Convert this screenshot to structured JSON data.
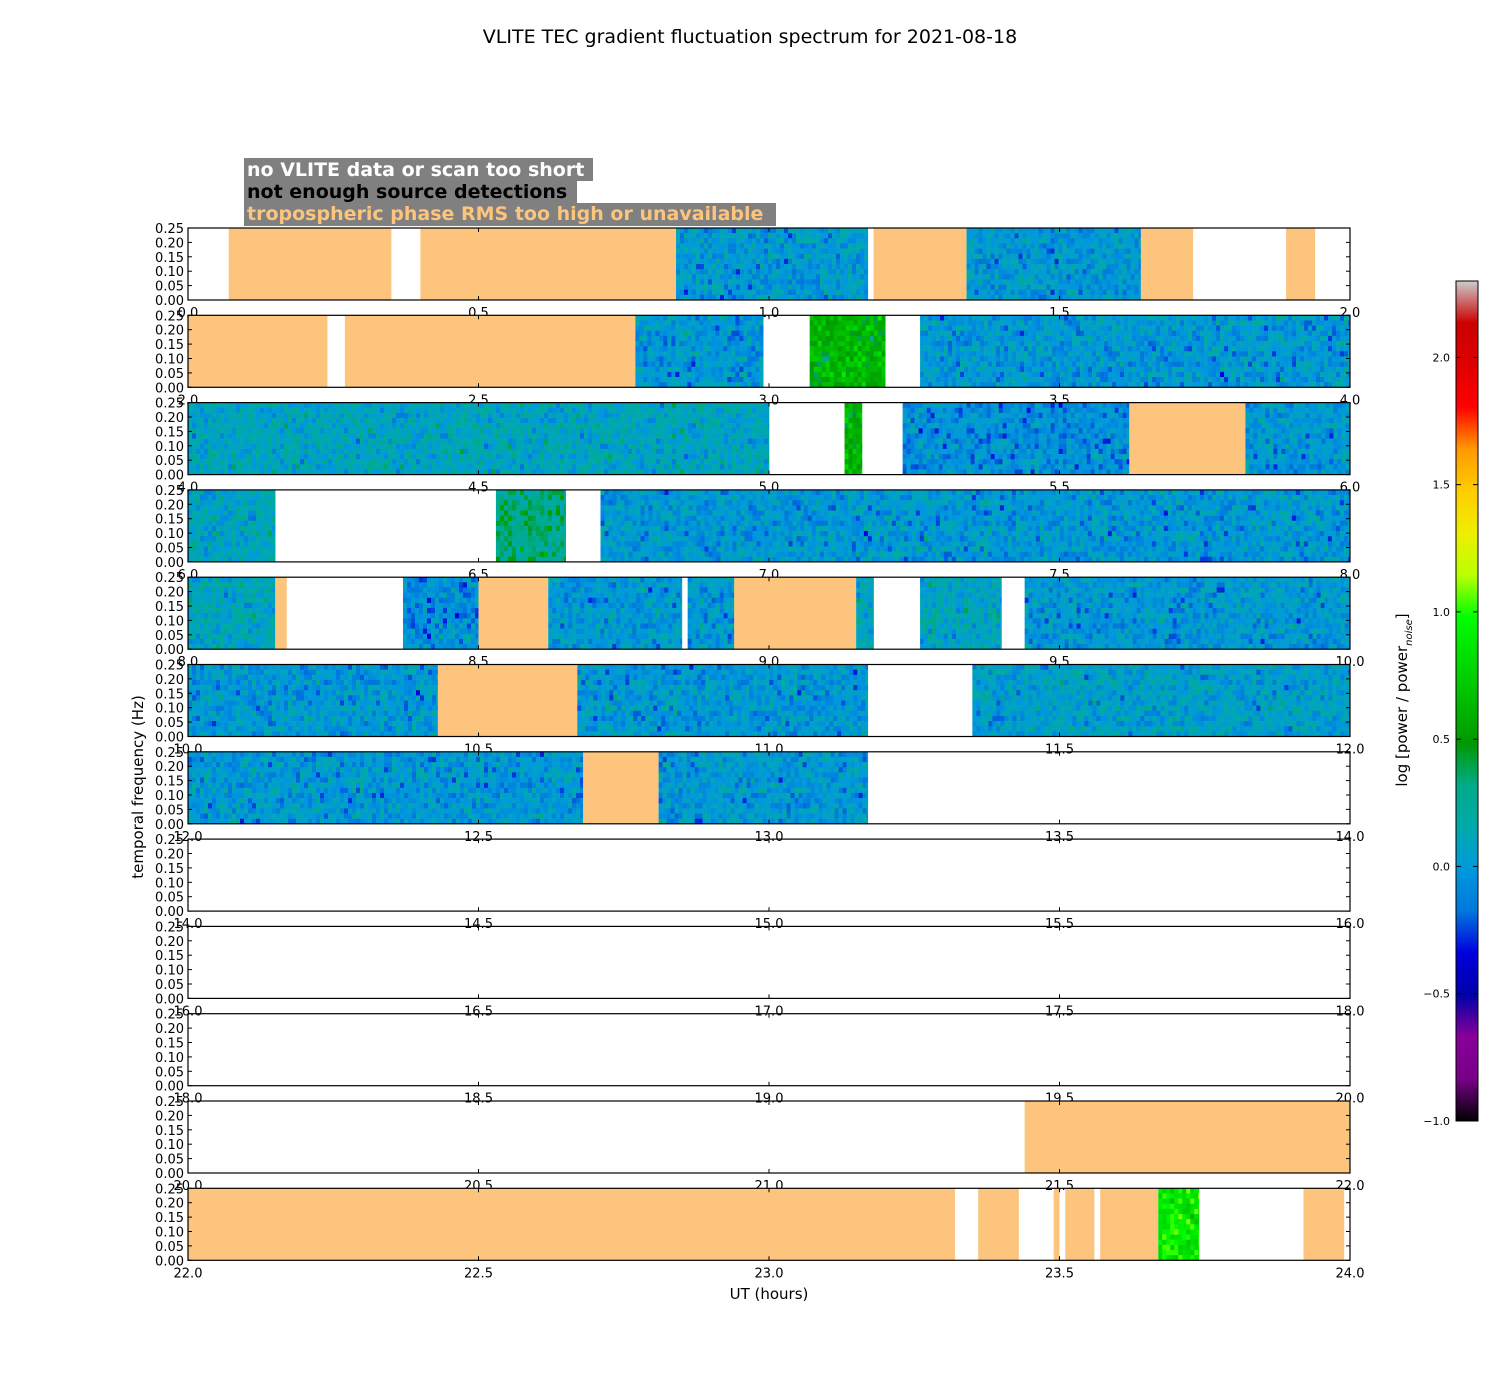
{
  "chart_data": {
    "type": "heatmap",
    "title": "VLITE TEC gradient fluctuation spectrum for 2021-08-18",
    "xlabel": "UT (hours)",
    "ylabel": "temporal frequency (Hz)",
    "ylim": [
      0,
      0.25
    ],
    "yticks": [
      "0.00",
      "0.05",
      "0.10",
      "0.15",
      "0.20",
      "0.25"
    ],
    "legend": [
      {
        "label": "no VLITE data or scan too short",
        "text_color": "#ffffff"
      },
      {
        "label": "not enough source detections",
        "text_color": "#000000"
      },
      {
        "label": "tropospheric phase RMS too high or unavailable",
        "text_color": "#fcc47c"
      }
    ],
    "legend_box_color": "#808080",
    "trop_color": "#fcc47c",
    "colorbar": {
      "label": "log [power / power",
      "label_sub": "noise",
      "label_end": "]",
      "range": [
        -1.0,
        2.3
      ],
      "ticks": [
        "-1.0",
        "-0.5",
        "0.0",
        "0.5",
        "1.0",
        "1.5",
        "2.0"
      ],
      "tick_values": [
        -1.0,
        -0.5,
        0.0,
        0.5,
        1.0,
        1.5,
        2.0
      ],
      "colormap": "nipy_spectral"
    },
    "panels": [
      {
        "xlim": [
          0,
          2
        ],
        "xticks": [
          "0.0",
          "0.5",
          "1.0",
          "1.5",
          "2.0"
        ],
        "segments": [
          {
            "start": 0.07,
            "end": 0.35,
            "state": "trop"
          },
          {
            "start": 0.4,
            "end": 0.84,
            "state": "trop"
          },
          {
            "start": 0.84,
            "end": 1.17,
            "state": "data",
            "level": 0.0
          },
          {
            "start": 1.18,
            "end": 1.34,
            "state": "trop"
          },
          {
            "start": 1.34,
            "end": 1.64,
            "state": "data",
            "level": 0.0
          },
          {
            "start": 1.64,
            "end": 1.73,
            "state": "trop"
          },
          {
            "start": 1.89,
            "end": 1.94,
            "state": "trop"
          }
        ]
      },
      {
        "xlim": [
          2,
          4
        ],
        "xticks": [
          "2.0",
          "2.5",
          "3.0",
          "3.5",
          "4.0"
        ],
        "segments": [
          {
            "start": 2.0,
            "end": 2.24,
            "state": "trop"
          },
          {
            "start": 2.27,
            "end": 2.77,
            "state": "trop"
          },
          {
            "start": 2.77,
            "end": 2.99,
            "state": "data",
            "level": 0.0
          },
          {
            "start": 3.07,
            "end": 3.2,
            "state": "data",
            "level": 0.6
          },
          {
            "start": 3.26,
            "end": 4.0,
            "state": "data",
            "level": 0.0
          }
        ]
      },
      {
        "xlim": [
          4,
          6
        ],
        "xticks": [
          "4.0",
          "4.5",
          "5.0",
          "5.5",
          "6.0"
        ],
        "segments": [
          {
            "start": 4.0,
            "end": 5.0,
            "state": "data",
            "level": 0.1
          },
          {
            "start": 5.13,
            "end": 5.16,
            "state": "data",
            "level": 0.6
          },
          {
            "start": 5.23,
            "end": 5.62,
            "state": "data",
            "level": -0.05
          },
          {
            "start": 5.62,
            "end": 5.82,
            "state": "trop"
          },
          {
            "start": 5.82,
            "end": 6.0,
            "state": "data",
            "level": 0.0
          }
        ]
      },
      {
        "xlim": [
          6,
          8
        ],
        "xticks": [
          "6.0",
          "6.5",
          "7.0",
          "7.5",
          "8.0"
        ],
        "segments": [
          {
            "start": 6.0,
            "end": 6.15,
            "state": "data",
            "level": 0.1
          },
          {
            "start": 6.53,
            "end": 6.65,
            "state": "data",
            "level": 0.3
          },
          {
            "start": 6.71,
            "end": 7.06,
            "state": "data",
            "level": 0.0
          },
          {
            "start": 7.06,
            "end": 8.0,
            "state": "data",
            "level": 0.0
          }
        ]
      },
      {
        "xlim": [
          8,
          10
        ],
        "xticks": [
          "8.0",
          "8.5",
          "9.0",
          "9.5",
          "10.0"
        ],
        "segments": [
          {
            "start": 8.0,
            "end": 8.15,
            "state": "data",
            "level": 0.1
          },
          {
            "start": 8.15,
            "end": 8.17,
            "state": "trop"
          },
          {
            "start": 8.37,
            "end": 8.5,
            "state": "data",
            "level": -0.05
          },
          {
            "start": 8.5,
            "end": 8.62,
            "state": "trop"
          },
          {
            "start": 8.62,
            "end": 8.85,
            "state": "data",
            "level": 0.0
          },
          {
            "start": 8.86,
            "end": 8.94,
            "state": "data",
            "level": 0.0
          },
          {
            "start": 8.94,
            "end": 9.15,
            "state": "trop"
          },
          {
            "start": 9.15,
            "end": 9.18,
            "state": "data",
            "level": 0.1
          },
          {
            "start": 9.26,
            "end": 9.4,
            "state": "data",
            "level": 0.1
          },
          {
            "start": 9.44,
            "end": 10.0,
            "state": "data",
            "level": 0.0
          }
        ]
      },
      {
        "xlim": [
          10,
          12
        ],
        "xticks": [
          "10.0",
          "10.5",
          "11.0",
          "11.5",
          "12.0"
        ],
        "segments": [
          {
            "start": 10.0,
            "end": 10.43,
            "state": "data",
            "level": 0.0
          },
          {
            "start": 10.43,
            "end": 10.67,
            "state": "trop"
          },
          {
            "start": 10.67,
            "end": 11.17,
            "state": "data",
            "level": 0.0
          },
          {
            "start": 11.35,
            "end": 12.0,
            "state": "data",
            "level": 0.05
          }
        ]
      },
      {
        "xlim": [
          12,
          14
        ],
        "xticks": [
          "12.0",
          "12.5",
          "13.0",
          "13.5",
          "14.0"
        ],
        "segments": [
          {
            "start": 12.0,
            "end": 12.68,
            "state": "data",
            "level": 0.0
          },
          {
            "start": 12.68,
            "end": 12.81,
            "state": "trop"
          },
          {
            "start": 12.81,
            "end": 13.17,
            "state": "data",
            "level": 0.0
          }
        ]
      },
      {
        "xlim": [
          14,
          16
        ],
        "xticks": [
          "14.0",
          "14.5",
          "15.0",
          "15.5",
          "16.0"
        ],
        "segments": []
      },
      {
        "xlim": [
          16,
          18
        ],
        "xticks": [
          "16.0",
          "16.5",
          "17.0",
          "17.5",
          "18.0"
        ],
        "segments": []
      },
      {
        "xlim": [
          18,
          20
        ],
        "xticks": [
          "18.0",
          "18.5",
          "19.0",
          "19.5",
          "20.0"
        ],
        "segments": []
      },
      {
        "xlim": [
          20,
          22
        ],
        "xticks": [
          "20.0",
          "20.5",
          "21.0",
          "21.5",
          "22.0"
        ],
        "segments": [
          {
            "start": 21.44,
            "end": 22.0,
            "state": "trop"
          }
        ]
      },
      {
        "xlim": [
          22,
          24
        ],
        "xticks": [
          "22.0",
          "22.5",
          "23.0",
          "23.5",
          "24.0"
        ],
        "segments": [
          {
            "start": 22.0,
            "end": 23.32,
            "state": "trop"
          },
          {
            "start": 23.36,
            "end": 23.43,
            "state": "trop"
          },
          {
            "start": 23.49,
            "end": 23.5,
            "state": "trop"
          },
          {
            "start": 23.51,
            "end": 23.56,
            "state": "trop"
          },
          {
            "start": 23.57,
            "end": 23.67,
            "state": "trop"
          },
          {
            "start": 23.67,
            "end": 23.74,
            "state": "data",
            "level": 0.9
          },
          {
            "start": 23.92,
            "end": 23.99,
            "state": "trop"
          }
        ]
      }
    ]
  }
}
